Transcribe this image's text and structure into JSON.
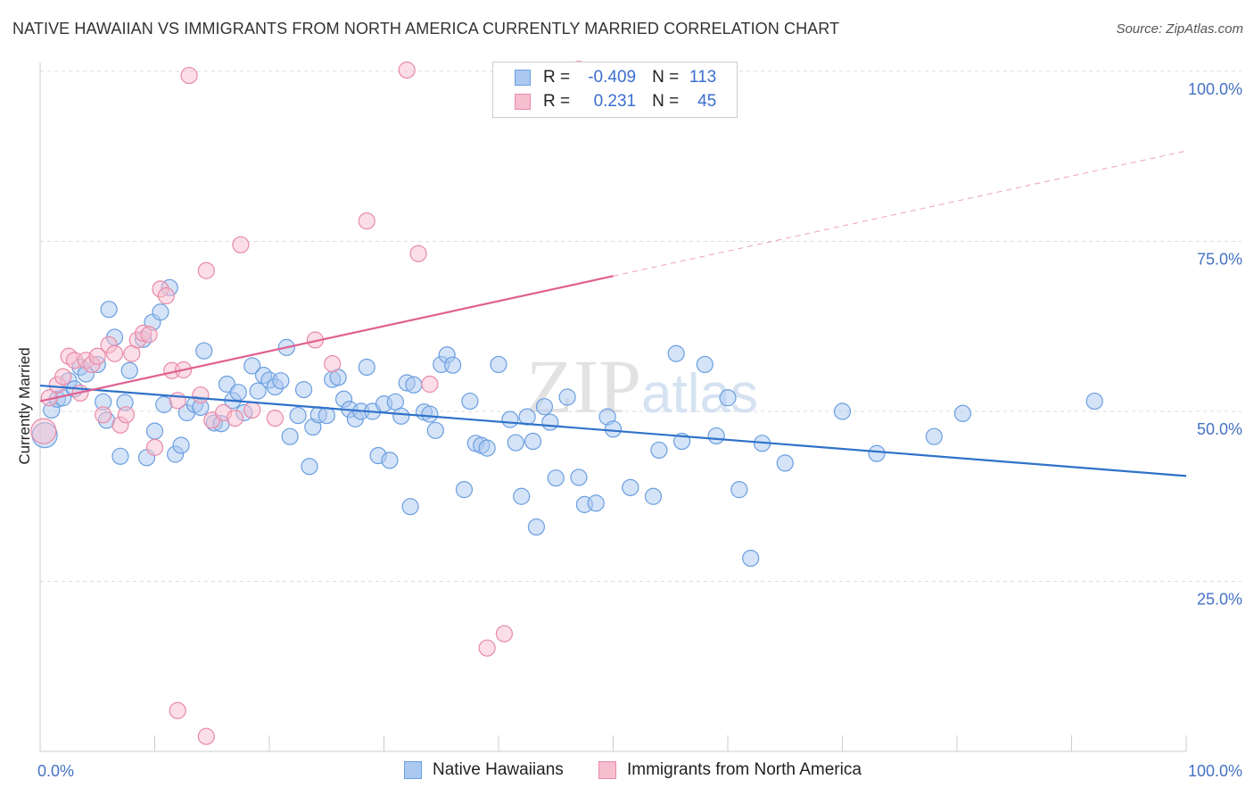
{
  "title": "NATIVE HAWAIIAN VS IMMIGRANTS FROM NORTH AMERICA CURRENTLY MARRIED CORRELATION CHART",
  "source": "Source: ZipAtlas.com",
  "legend": {
    "rows": [
      {
        "r_label": "R =",
        "r_value": "-0.409",
        "n_label": "N =",
        "n_value": "113",
        "color": "#aac8f0",
        "border": "#6a9ee0"
      },
      {
        "r_label": "R =",
        "r_value": "0.231",
        "n_label": "N =",
        "n_value": "45",
        "color": "#f7bed0",
        "border": "#e88aa8"
      }
    ]
  },
  "bottom_legend": [
    {
      "label": "Native Hawaiians",
      "color": "#aac8f0",
      "border": "#6a9ee0"
    },
    {
      "label": "Immigrants from North America",
      "color": "#f7bed0",
      "border": "#e88aa8"
    }
  ],
  "watermark": "ZIPatlas",
  "chart_data": {
    "type": "scatter",
    "ylabel": "Currently Married",
    "xlim": [
      0,
      100
    ],
    "ylim": [
      0,
      105
    ],
    "x_ticks": [
      "0.0%",
      "100.0%"
    ],
    "y_ticks": [
      {
        "value": 25,
        "label": "25.0%"
      },
      {
        "value": 50,
        "label": "50.0%"
      },
      {
        "value": 75,
        "label": "75.0%"
      },
      {
        "value": 100,
        "label": "100.0%"
      }
    ],
    "grid": true,
    "series": [
      {
        "name": "Native Hawaiians",
        "color": "#aac8f0",
        "stroke": "#6a9ee0",
        "line_color": "#2f72c9",
        "trend": {
          "x0": 0,
          "y0": 53.8,
          "x1": 100,
          "y1": 40.5
        },
        "points": [
          [
            0.4,
            46.5
          ],
          [
            1.0,
            50.2
          ],
          [
            1.5,
            51.8
          ],
          [
            2.0,
            52.0
          ],
          [
            2.5,
            54.5
          ],
          [
            3.0,
            53.3
          ],
          [
            3.5,
            56.5
          ],
          [
            4.0,
            55.5
          ],
          [
            5.0,
            56.9
          ],
          [
            5.5,
            51.4
          ],
          [
            5.8,
            48.7
          ],
          [
            6.0,
            65.0
          ],
          [
            6.5,
            60.9
          ],
          [
            7.0,
            43.4
          ],
          [
            7.4,
            51.3
          ],
          [
            7.8,
            56.0
          ],
          [
            9.0,
            60.6
          ],
          [
            9.3,
            43.2
          ],
          [
            9.8,
            63.1
          ],
          [
            10.0,
            47.1
          ],
          [
            10.5,
            64.6
          ],
          [
            10.8,
            51.0
          ],
          [
            11.3,
            68.2
          ],
          [
            11.8,
            43.7
          ],
          [
            12.3,
            45.0
          ],
          [
            12.8,
            49.8
          ],
          [
            13.5,
            51.0
          ],
          [
            14.0,
            50.6
          ],
          [
            14.3,
            58.9
          ],
          [
            15.2,
            48.3
          ],
          [
            15.8,
            48.2
          ],
          [
            16.3,
            54.0
          ],
          [
            16.8,
            51.6
          ],
          [
            17.3,
            52.8
          ],
          [
            17.8,
            49.8
          ],
          [
            18.5,
            56.7
          ],
          [
            19.0,
            53.0
          ],
          [
            19.5,
            55.3
          ],
          [
            20.0,
            54.6
          ],
          [
            20.5,
            53.6
          ],
          [
            21.0,
            54.5
          ],
          [
            21.5,
            59.4
          ],
          [
            21.8,
            46.3
          ],
          [
            22.5,
            49.4
          ],
          [
            23.0,
            53.2
          ],
          [
            23.5,
            41.9
          ],
          [
            23.8,
            47.7
          ],
          [
            24.3,
            49.5
          ],
          [
            25.0,
            49.4
          ],
          [
            25.5,
            54.7
          ],
          [
            26.0,
            55.0
          ],
          [
            26.5,
            51.8
          ],
          [
            27.0,
            50.3
          ],
          [
            27.5,
            48.9
          ],
          [
            28.0,
            50.0
          ],
          [
            28.5,
            56.5
          ],
          [
            29.0,
            50.0
          ],
          [
            29.5,
            43.5
          ],
          [
            30.0,
            51.1
          ],
          [
            30.5,
            42.8
          ],
          [
            31.0,
            51.4
          ],
          [
            31.5,
            49.3
          ],
          [
            32.0,
            54.2
          ],
          [
            32.3,
            36.0
          ],
          [
            32.6,
            53.9
          ],
          [
            33.5,
            49.9
          ],
          [
            34.0,
            49.6
          ],
          [
            34.5,
            47.2
          ],
          [
            35.0,
            56.9
          ],
          [
            35.5,
            58.3
          ],
          [
            36.0,
            56.8
          ],
          [
            37.0,
            38.5
          ],
          [
            37.5,
            51.5
          ],
          [
            38.0,
            45.3
          ],
          [
            38.5,
            45.0
          ],
          [
            39.0,
            44.6
          ],
          [
            40.0,
            56.9
          ],
          [
            41.0,
            48.8
          ],
          [
            41.5,
            45.4
          ],
          [
            42.0,
            37.5
          ],
          [
            42.5,
            49.2
          ],
          [
            43.0,
            45.6
          ],
          [
            43.3,
            33.0
          ],
          [
            44.0,
            50.7
          ],
          [
            44.5,
            48.4
          ],
          [
            45.0,
            40.2
          ],
          [
            46.0,
            52.1
          ],
          [
            47.0,
            40.3
          ],
          [
            47.5,
            36.3
          ],
          [
            48.5,
            36.5
          ],
          [
            49.5,
            49.2
          ],
          [
            50.0,
            47.4
          ],
          [
            51.5,
            38.8
          ],
          [
            53.5,
            37.5
          ],
          [
            54.0,
            44.3
          ],
          [
            55.5,
            58.5
          ],
          [
            56.0,
            45.6
          ],
          [
            58.0,
            56.9
          ],
          [
            59.0,
            46.4
          ],
          [
            60.0,
            52.0
          ],
          [
            61.0,
            38.5
          ],
          [
            62.0,
            28.4
          ],
          [
            63.0,
            45.3
          ],
          [
            65.0,
            42.4
          ],
          [
            70.0,
            50.0
          ],
          [
            73.0,
            43.8
          ],
          [
            78.0,
            46.3
          ],
          [
            80.5,
            49.7
          ],
          [
            92.0,
            51.5
          ]
        ]
      },
      {
        "name": "Immigrants from North America",
        "color": "#f7bed0",
        "stroke": "#e88aa8",
        "line_color": "#e06090",
        "trend": {
          "x0": 0,
          "y0": 51.5,
          "x1": 50,
          "y1": 69.9
        },
        "trend_dash": {
          "x0": 50,
          "y0": 69.9,
          "x1": 100,
          "y1": 88.3
        },
        "points": [
          [
            0.3,
            47.1
          ],
          [
            0.8,
            52.0
          ],
          [
            1.5,
            53.9
          ],
          [
            2.0,
            55.1
          ],
          [
            2.5,
            58.1
          ],
          [
            3.0,
            57.5
          ],
          [
            3.5,
            52.7
          ],
          [
            4.0,
            57.5
          ],
          [
            4.5,
            56.9
          ],
          [
            5.0,
            58.1
          ],
          [
            5.5,
            49.5
          ],
          [
            6.0,
            59.8
          ],
          [
            6.5,
            58.5
          ],
          [
            7.0,
            48.0
          ],
          [
            7.5,
            49.5
          ],
          [
            8.0,
            58.5
          ],
          [
            8.5,
            60.5
          ],
          [
            9.0,
            61.5
          ],
          [
            9.5,
            61.3
          ],
          [
            10.0,
            44.7
          ],
          [
            10.5,
            68.0
          ],
          [
            11.0,
            67.0
          ],
          [
            11.5,
            56.0
          ],
          [
            12.0,
            51.6
          ],
          [
            12.5,
            56.1
          ],
          [
            13.0,
            99.4
          ],
          [
            14.0,
            52.4
          ],
          [
            14.5,
            70.7
          ],
          [
            15.0,
            48.7
          ],
          [
            16.0,
            49.8
          ],
          [
            17.0,
            49.0
          ],
          [
            17.5,
            74.5
          ],
          [
            18.5,
            50.2
          ],
          [
            20.5,
            49.0
          ],
          [
            24.0,
            60.5
          ],
          [
            25.5,
            57.0
          ],
          [
            28.5,
            78.0
          ],
          [
            32.0,
            100.2
          ],
          [
            33.0,
            73.2
          ],
          [
            34.0,
            54.0
          ],
          [
            39.0,
            15.2
          ],
          [
            40.5,
            17.3
          ],
          [
            12.0,
            6.0
          ],
          [
            14.5,
            2.2
          ],
          [
            47.0,
            100.3
          ]
        ]
      }
    ]
  }
}
